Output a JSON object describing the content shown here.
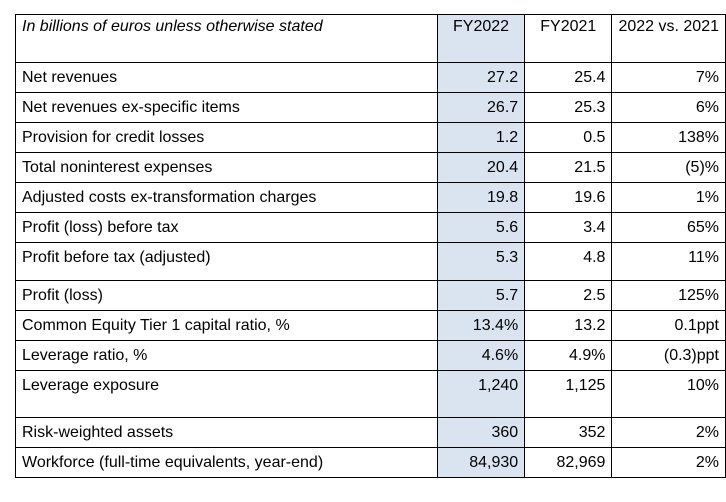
{
  "table": {
    "caption": "In billions of euros unless otherwise stated",
    "columns": [
      "FY2022",
      "FY2021",
      "2022 vs. 2021"
    ],
    "rows": [
      {
        "label": "Net revenues",
        "fy2022": "27.2",
        "fy2021": "25.4",
        "change": "7%"
      },
      {
        "label": "Net revenues ex-specific items",
        "fy2022": "26.7",
        "fy2021": "25.3",
        "change": "6%"
      },
      {
        "label": "Provision for credit losses",
        "fy2022": "1.2",
        "fy2021": "0.5",
        "change": "138%"
      },
      {
        "label": "Total noninterest expenses",
        "fy2022": "20.4",
        "fy2021": "21.5",
        "change": "(5)%"
      },
      {
        "label": "Adjusted costs ex-transformation charges",
        "fy2022": "19.8",
        "fy2021": "19.6",
        "change": "1%"
      },
      {
        "label": "Profit (loss) before tax",
        "fy2022": "5.6",
        "fy2021": "3.4",
        "change": "65%"
      },
      {
        "label": "Profit before tax (adjusted)",
        "fy2022": "5.3",
        "fy2021": "4.8",
        "change": "11%"
      },
      {
        "label": "Profit (loss)",
        "fy2022": "5.7",
        "fy2021": "2.5",
        "change": "125%"
      },
      {
        "label": "Common Equity Tier 1 capital ratio, %",
        "fy2022": "13.4%",
        "fy2021": "13.2",
        "change": "0.1ppt"
      },
      {
        "label": "Leverage ratio, %",
        "fy2022": "4.6%",
        "fy2021": "4.9%",
        "change": "(0.3)ppt"
      },
      {
        "label": "Leverage exposure",
        "fy2022": "1,240",
        "fy2021": "1,125",
        "change": "10%"
      },
      {
        "label": "Risk-weighted assets",
        "fy2022": "360",
        "fy2021": "352",
        "change": "2%"
      },
      {
        "label": "Workforce (full-time equivalents, year-end)",
        "fy2022": "84,930",
        "fy2021": "82,969",
        "change": "2%"
      }
    ]
  }
}
